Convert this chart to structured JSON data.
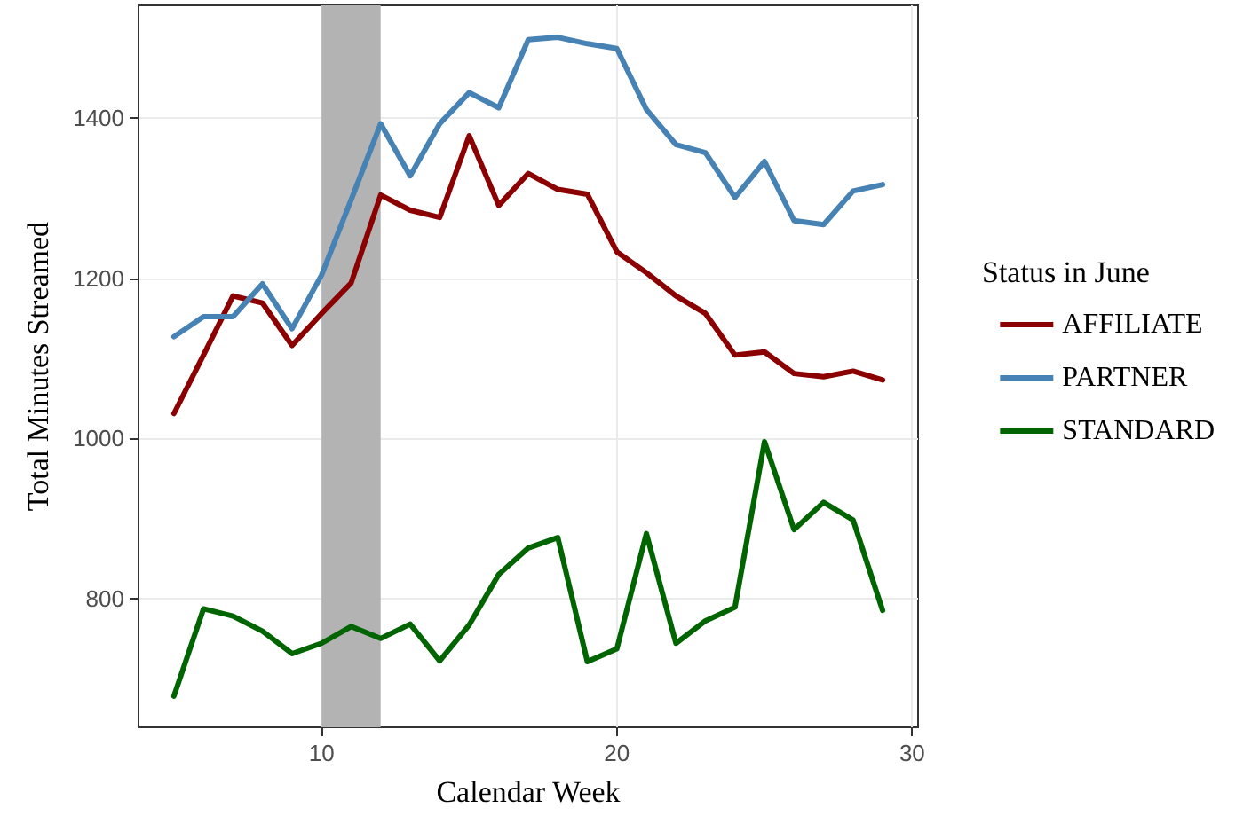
{
  "chart_data": {
    "type": "line",
    "xlabel": "Calendar Week",
    "ylabel": "Total Minutes Streamed",
    "legend_title": "Status in June",
    "x": [
      5,
      6,
      7,
      8,
      9,
      10,
      11,
      12,
      13,
      14,
      15,
      16,
      17,
      18,
      19,
      20,
      21,
      22,
      23,
      24,
      25,
      26,
      27,
      28,
      29
    ],
    "series": [
      {
        "name": "AFFILIATE",
        "color": "#8b0000",
        "values": [
          1031,
          1104,
          1178,
          1169,
          1116,
          1156,
          1194,
          1304,
          1285,
          1276,
          1378,
          1291,
          1331,
          1311,
          1305,
          1233,
          1207,
          1178,
          1156,
          1104,
          1108,
          1081,
          1077,
          1084,
          1073
        ]
      },
      {
        "name": "PARTNER",
        "color": "#4682b4",
        "values": [
          1127,
          1152,
          1152,
          1193,
          1137,
          1204,
          1298,
          1393,
          1328,
          1393,
          1432,
          1413,
          1498,
          1501,
          1493,
          1487,
          1411,
          1367,
          1357,
          1301,
          1346,
          1272,
          1267,
          1309,
          1317
        ]
      },
      {
        "name": "STANDARD",
        "color": "#006400",
        "values": [
          678,
          787,
          778,
          759,
          731,
          744,
          765,
          750,
          768,
          722,
          767,
          830,
          863,
          876,
          721,
          737,
          881,
          744,
          772,
          789,
          996,
          886,
          920,
          898,
          785
        ]
      }
    ],
    "bands": [
      {
        "axis": "x",
        "from": 10,
        "to": 12,
        "color": "#b3b3b3"
      }
    ],
    "xlim": [
      3.8,
      30.2
    ],
    "xticks": [
      10,
      20,
      30
    ],
    "ylim": [
      639,
      1541
    ],
    "yticks": [
      800,
      1000,
      1200,
      1400
    ],
    "grid": true,
    "legend": "right",
    "marker": "none",
    "line_style": "solid"
  }
}
